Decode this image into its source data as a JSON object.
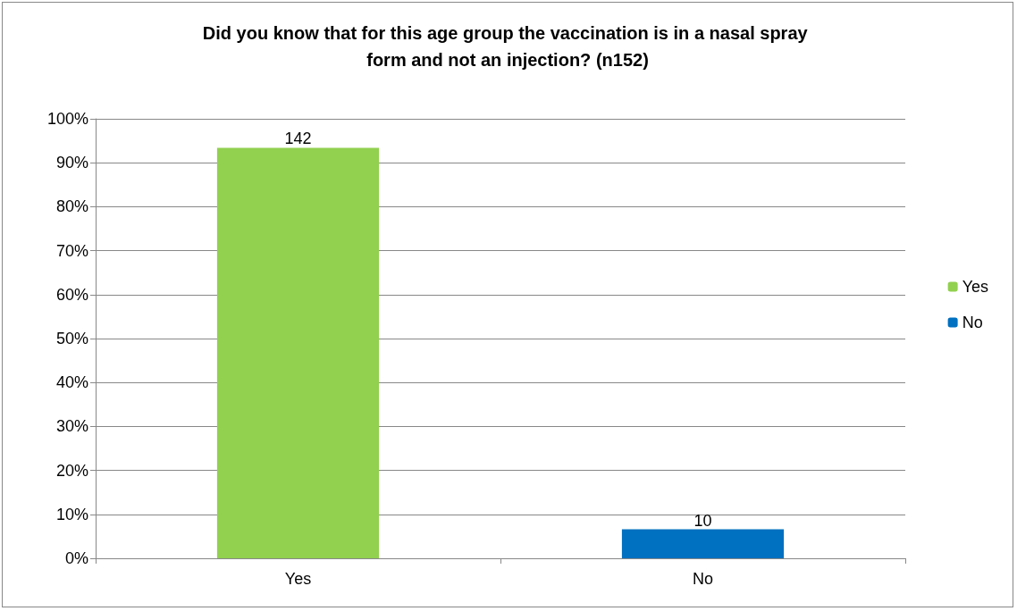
{
  "chart_data": {
    "type": "bar",
    "title": "Did you know that for this age group the vaccination is in a nasal spray form and not an injection? (n152)",
    "categories": [
      "Yes",
      "No"
    ],
    "series": [
      {
        "name": "Yes",
        "color": "#92d050",
        "values": [
          93.4,
          null
        ]
      },
      {
        "name": "No",
        "color": "#0070c0",
        "values": [
          null,
          6.6
        ]
      }
    ],
    "annotations": [
      {
        "text": "142",
        "x": "Yes",
        "y": 93.4
      },
      {
        "text": "10",
        "x": "No",
        "y": 6.6
      }
    ],
    "ylim": [
      0,
      100
    ],
    "yticks": [
      {
        "value": 0,
        "label": "0%"
      },
      {
        "value": 10,
        "label": "10%"
      },
      {
        "value": 20,
        "label": "20%"
      },
      {
        "value": 30,
        "label": "30%"
      },
      {
        "value": 40,
        "label": "40%"
      },
      {
        "value": 50,
        "label": "50%"
      },
      {
        "value": 60,
        "label": "60%"
      },
      {
        "value": 70,
        "label": "70%"
      },
      {
        "value": 80,
        "label": "80%"
      },
      {
        "value": 90,
        "label": "90%"
      },
      {
        "value": 100,
        "label": "100%"
      }
    ],
    "grid": "y",
    "legend": "right"
  }
}
